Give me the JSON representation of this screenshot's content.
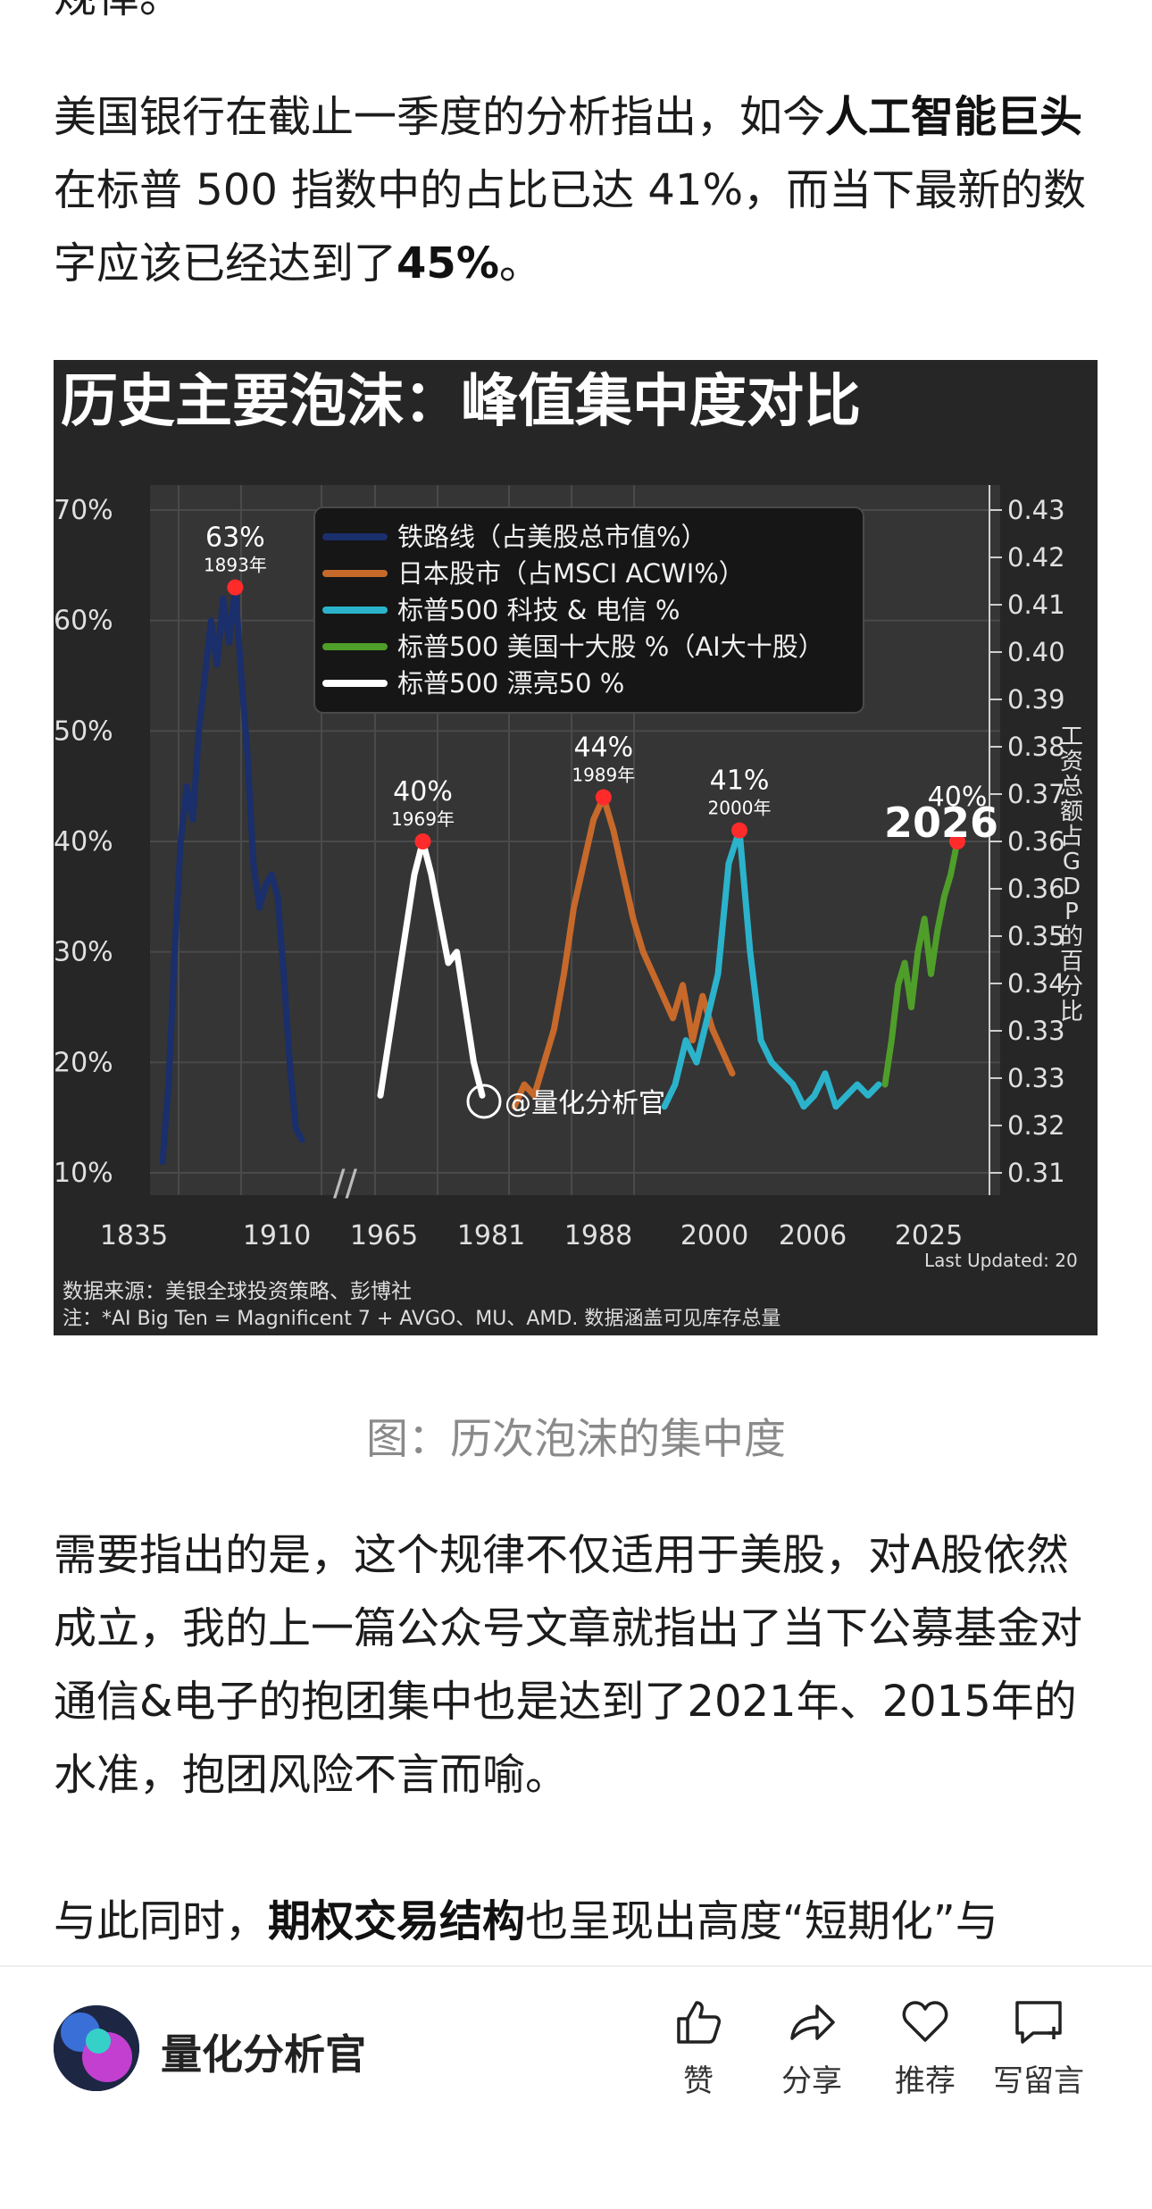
{
  "article": {
    "p0": "规律。",
    "p1a": "美国银行在截止一季度的分析指出，如今",
    "p1b": "人工智能巨头",
    "p1c": "在标普 500 指数中的占比已达 41%，而当下最新的数字应该已经达到了",
    "p1d": "45%",
    "p1e": "。",
    "p2": "需要指出的是，这个规律不仅适用于美股，对A股依然成立，我的上一篇公众号文章就指出了当下公募基金对通信&电子的抱团集中也是达到了2021年、2015年的水准，抱团风险不言而喻。",
    "p3a": "与此同时，",
    "p3b": "期权交易结构",
    "p3c": "也呈现出高度“短期化”与"
  },
  "caption": "图：历次泡沫的集中度",
  "footer": {
    "author": "量化分析官",
    "like": "赞",
    "share": "分享",
    "recommend": "推荐",
    "comment": "写留言"
  },
  "chart_data": {
    "type": "line",
    "title": "历史主要泡沫：峰值集中度对比",
    "x_ticks": [
      "1835",
      "1910",
      "1965",
      "1981",
      "1988",
      "2000",
      "2006",
      "2025"
    ],
    "y_left_ticks": [
      "10%",
      "20%",
      "30%",
      "40%",
      "50%",
      "60%",
      "70%"
    ],
    "y_right_ticks": [
      "0.31",
      "0.32",
      "0.33",
      "0.33",
      "0.34",
      "0.35",
      "0.36",
      "0.36",
      "0.37",
      "0.38",
      "0.39",
      "0.40",
      "0.41",
      "0.42",
      "0.43"
    ],
    "ylabel_right": "工资总额占GDP的百分比",
    "ylim": [
      10,
      70
    ],
    "legend_position": "top",
    "series": [
      {
        "name": "铁路线（占美股总市值%）",
        "color": "#1a2f6b",
        "values": [
          11,
          18,
          30,
          40,
          45,
          42,
          50,
          55,
          60,
          56,
          62,
          58,
          63,
          55,
          48,
          38,
          34,
          36,
          37,
          35,
          28,
          20,
          14,
          13
        ]
      },
      {
        "name": "日本股市（占MSCI ACWI%）",
        "color": "#c6692b",
        "values": [
          16,
          18,
          17,
          20,
          23,
          28,
          34,
          38,
          42,
          44,
          41,
          37,
          33,
          30,
          28,
          26,
          24,
          27,
          22,
          26,
          23,
          21,
          19
        ]
      },
      {
        "name": "标普500 科技 & 电信 %",
        "color": "#2bb3cc",
        "values": [
          16,
          18,
          22,
          20,
          24,
          28,
          38,
          41,
          30,
          22,
          20,
          19,
          18,
          16,
          17,
          19,
          16,
          17,
          18,
          17,
          18
        ]
      },
      {
        "name": "标普500 美国十大股 %（AI大十股）",
        "color": "#4f9e2a",
        "values": [
          18,
          22,
          27,
          29,
          25,
          30,
          33,
          28,
          32,
          35,
          37,
          40
        ]
      },
      {
        "name": "标普500 漂亮50 %",
        "color": "#ffffff",
        "values": [
          17,
          22,
          27,
          32,
          37,
          40,
          37,
          33,
          29,
          30,
          25,
          20,
          17
        ]
      }
    ],
    "annotations": [
      {
        "series": "铁路线（占美股总市值%）",
        "value": "63%",
        "year": "1893年"
      },
      {
        "series": "标普500 漂亮50 %",
        "value": "40%",
        "year": "1969年"
      },
      {
        "series": "日本股市（占MSCI ACWI%）",
        "value": "44%",
        "year": "1989年"
      },
      {
        "series": "标普500 科技 & 电信 %",
        "value": "41%",
        "year": "2000年"
      },
      {
        "series": "标普500 美国十大股 %（AI大十股）",
        "value": "40%",
        "year": "2026"
      }
    ],
    "axis_break": "//",
    "watermark": "@量化分析官",
    "last_updated": "Last Updated: 20",
    "source_note": "数据来源：美银全球投资策略、彭博社",
    "footnote": "注：*AI Big Ten = Magnificent 7 + AVGO、MU、AMD. 数据涵盖可见库存总量"
  }
}
